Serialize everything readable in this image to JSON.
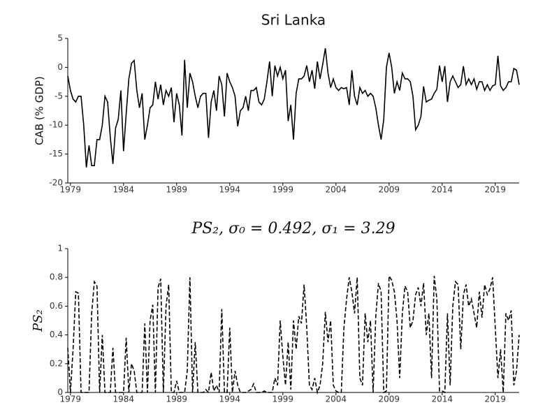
{
  "chart_data": [
    {
      "type": "line",
      "title": "Sri Lanka",
      "ylabel": "CAB (% GDP)",
      "color": "#000000",
      "linestyle": "solid",
      "x": [
        1978.75,
        1979,
        1979.25,
        1979.5,
        1979.75,
        1980,
        1980.25,
        1980.5,
        1980.75,
        1981,
        1981.25,
        1981.5,
        1981.75,
        1982,
        1982.25,
        1982.5,
        1982.75,
        1983,
        1983.25,
        1983.5,
        1983.75,
        1984,
        1984.25,
        1984.5,
        1984.75,
        1985,
        1985.25,
        1985.5,
        1985.75,
        1986,
        1986.25,
        1986.5,
        1986.75,
        1987,
        1987.25,
        1987.5,
        1987.75,
        1988,
        1988.25,
        1988.5,
        1988.75,
        1989,
        1989.25,
        1989.5,
        1989.75,
        1990,
        1990.25,
        1990.5,
        1990.75,
        1991,
        1991.25,
        1991.5,
        1991.75,
        1992,
        1992.25,
        1992.5,
        1992.75,
        1993,
        1993.25,
        1993.5,
        1993.75,
        1994,
        1994.25,
        1994.5,
        1994.75,
        1995,
        1995.25,
        1995.5,
        1995.75,
        1996,
        1996.25,
        1996.5,
        1996.75,
        1997,
        1997.25,
        1997.5,
        1997.75,
        1998,
        1998.25,
        1998.5,
        1998.75,
        1999,
        1999.25,
        1999.5,
        1999.75,
        2000,
        2000.25,
        2000.5,
        2000.75,
        2001,
        2001.25,
        2001.5,
        2001.75,
        2002,
        2002.25,
        2002.5,
        2002.75,
        2003,
        2003.25,
        2003.5,
        2003.75,
        2004,
        2004.25,
        2004.5,
        2004.75,
        2005,
        2005.25,
        2005.5,
        2005.75,
        2006,
        2006.25,
        2006.5,
        2006.75,
        2007,
        2007.25,
        2007.5,
        2007.75,
        2008,
        2008.25,
        2008.5,
        2008.75,
        2009,
        2009.25,
        2009.5,
        2009.75,
        2010,
        2010.25,
        2010.5,
        2010.75,
        2011,
        2011.25,
        2011.5,
        2011.75,
        2012,
        2012.25,
        2012.5,
        2012.75,
        2013,
        2013.25,
        2013.5,
        2013.75,
        2014,
        2014.25,
        2014.5,
        2014.75,
        2015,
        2015.25,
        2015.5,
        2015.75,
        2016,
        2016.25,
        2016.5,
        2016.75,
        2017,
        2017.25,
        2017.5,
        2017.75,
        2018,
        2018.25,
        2018.5,
        2018.75,
        2019,
        2019.25,
        2019.5,
        2019.75,
        2020,
        2020.25,
        2020.5,
        2020.75,
        2021,
        2021.25
      ],
      "values": [
        -1.5,
        -4,
        -5.5,
        -6,
        -5,
        -5,
        -10,
        -17.3,
        -13.5,
        -17,
        -17,
        -12.5,
        -12.5,
        -10,
        -5,
        -6,
        -12,
        -16.7,
        -10.5,
        -9,
        -4,
        -14.5,
        -8,
        -2,
        0.7,
        1.2,
        -4,
        -7,
        -4.5,
        -12.5,
        -10,
        -7,
        -6.5,
        -2.5,
        -5.5,
        -3,
        -6.5,
        -4,
        -5,
        -3.5,
        -9.5,
        -4.5,
        -6.5,
        -11.8,
        1.3,
        -7,
        -1,
        -2.5,
        -5,
        -7,
        -5,
        -4.5,
        -4.5,
        -12.2,
        -6,
        -4,
        -7.5,
        -1.5,
        -3,
        -8.5,
        -1,
        -2.5,
        -3.5,
        -5,
        -10.2,
        -7.5,
        -7,
        -5,
        -7.5,
        -4,
        -4,
        -3.5,
        -6,
        -6.5,
        -5.5,
        -2.5,
        1,
        -5,
        0.3,
        -1.5,
        0,
        -2,
        -0.5,
        -9.3,
        -6.5,
        -12.5,
        -4.5,
        -2,
        -2,
        -1.5,
        0.3,
        -2.5,
        -0.5,
        -3.7,
        1,
        -2,
        0.5,
        3.3,
        -1,
        -3.5,
        -2,
        -3.5,
        -4,
        -3.5,
        -3.7,
        -3.5,
        -6.5,
        -0.5,
        -5,
        -6.5,
        -3.5,
        -4.5,
        -4,
        -5,
        -4.5,
        -5,
        -7,
        -10,
        -12.5,
        -9,
        0,
        2.5,
        0,
        -4.5,
        -2.5,
        -4,
        -1,
        -2,
        -2,
        -2.5,
        -5,
        -10.8,
        -10,
        -8.5,
        -3.3,
        -6,
        -5.7,
        -5.5,
        -4.5,
        -3.8,
        0.3,
        -2.5,
        0.2,
        -6,
        -2.5,
        -1.5,
        -2.5,
        -3.5,
        -3,
        0.2,
        -3,
        -2,
        -3,
        -2,
        -3.8,
        -2.5,
        -2.5,
        -4,
        -3,
        -4,
        -3.2,
        -3,
        2,
        -3.2,
        -4,
        -3.5,
        -2.5,
        -2.5,
        -0.2,
        -0.5,
        -3
      ],
      "xlim": [
        1978.75,
        2021.25
      ],
      "xticks": [
        1979,
        1984,
        1989,
        1994,
        1999,
        2004,
        2009,
        2014,
        2019
      ],
      "ylim": [
        -20,
        5
      ],
      "yticks": [
        -20,
        -15,
        -10,
        -5,
        0,
        5
      ]
    },
    {
      "type": "line",
      "title": "PS₂, σ₀ = 0.492, σ₁ = 3.29",
      "ylabel": "PS₂",
      "color": "#000000",
      "linestyle": "dashed",
      "x": [
        1978.75,
        1979,
        1979.25,
        1979.5,
        1979.75,
        1980,
        1980.25,
        1980.5,
        1980.75,
        1981,
        1981.25,
        1981.5,
        1981.75,
        1982,
        1982.25,
        1982.5,
        1982.75,
        1983,
        1983.25,
        1983.5,
        1983.75,
        1984,
        1984.25,
        1984.5,
        1984.75,
        1985,
        1985.25,
        1985.5,
        1985.75,
        1986,
        1986.25,
        1986.5,
        1986.75,
        1987,
        1987.25,
        1987.5,
        1987.75,
        1988,
        1988.25,
        1988.5,
        1988.75,
        1989,
        1989.25,
        1989.5,
        1989.75,
        1990,
        1990.25,
        1990.5,
        1990.75,
        1991,
        1991.25,
        1991.5,
        1991.75,
        1992,
        1992.25,
        1992.5,
        1992.75,
        1993,
        1993.25,
        1993.5,
        1993.75,
        1994,
        1994.25,
        1994.5,
        1994.75,
        1995,
        1995.25,
        1995.5,
        1995.75,
        1996,
        1996.25,
        1996.5,
        1996.75,
        1997,
        1997.25,
        1997.5,
        1997.75,
        1998,
        1998.25,
        1998.5,
        1998.75,
        1999,
        1999.25,
        1999.5,
        1999.75,
        2000,
        2000.25,
        2000.5,
        2000.75,
        2001,
        2001.25,
        2001.5,
        2001.75,
        2002,
        2002.25,
        2002.5,
        2002.75,
        2003,
        2003.25,
        2003.5,
        2003.75,
        2004,
        2004.25,
        2004.5,
        2004.75,
        2005,
        2005.25,
        2005.5,
        2005.75,
        2006,
        2006.25,
        2006.5,
        2006.75,
        2007,
        2007.25,
        2007.5,
        2007.75,
        2008,
        2008.25,
        2008.5,
        2008.75,
        2009,
        2009.25,
        2009.5,
        2009.75,
        2010,
        2010.25,
        2010.5,
        2010.75,
        2011,
        2011.25,
        2011.5,
        2011.75,
        2012,
        2012.25,
        2012.5,
        2012.75,
        2013,
        2013.25,
        2013.5,
        2013.75,
        2014,
        2014.25,
        2014.5,
        2014.75,
        2015,
        2015.25,
        2015.5,
        2015.75,
        2016,
        2016.25,
        2016.5,
        2016.75,
        2017,
        2017.25,
        2017.5,
        2017.75,
        2018,
        2018.25,
        2018.5,
        2018.75,
        2019,
        2019.25,
        2019.5,
        2019.75,
        2020,
        2020.25,
        2020.5,
        2020.75,
        2021,
        2021.25
      ],
      "values": [
        0.31,
        0,
        0.3,
        0.7,
        0.69,
        0,
        0,
        0,
        0,
        0.55,
        0.77,
        0.74,
        0,
        0.4,
        0,
        0,
        0,
        0.31,
        0,
        0,
        0,
        0,
        0.38,
        0,
        0.2,
        0.15,
        0,
        0,
        0,
        0.48,
        0,
        0.5,
        0.61,
        0,
        0.73,
        0.79,
        0,
        0.6,
        0.75,
        0,
        0,
        0.08,
        0,
        0,
        0,
        0.15,
        0.8,
        0,
        0.35,
        0,
        0,
        0,
        0.02,
        0,
        0.14,
        0.01,
        0.05,
        0,
        0.58,
        0,
        0,
        0.45,
        0,
        0.15,
        0.05,
        0,
        0,
        0,
        0.01,
        0.02,
        0.06,
        0,
        0,
        0,
        0.01,
        0,
        0,
        0,
        0.1,
        0.05,
        0.5,
        0.25,
        0.05,
        0.35,
        0.02,
        0.5,
        0.3,
        0.53,
        0.48,
        0.75,
        0.45,
        0.05,
        0.02,
        0.1,
        0,
        0.05,
        0.2,
        0.56,
        0.35,
        0.5,
        0.05,
        0.01,
        0,
        0,
        0.45,
        0.65,
        0.8,
        0.7,
        0.55,
        0.8,
        0.1,
        0.05,
        0.55,
        0.35,
        0.5,
        0,
        0.53,
        0.76,
        0.7,
        0,
        0.01,
        0.81,
        0.78,
        0.7,
        0.5,
        0.1,
        0.55,
        0.74,
        0.7,
        0.45,
        0.5,
        0.68,
        0.73,
        0.6,
        0.76,
        0.4,
        0.55,
        0.1,
        0.81,
        0.65,
        0.01,
        0.01,
        0,
        0.55,
        0.05,
        0.6,
        0.77,
        0.75,
        0.3,
        0.68,
        0.75,
        0.6,
        0.65,
        0.55,
        0.45,
        0.7,
        0.52,
        0.75,
        0.68,
        0.72,
        0.8,
        0.45,
        0.1,
        0.3,
        0,
        0.55,
        0.5,
        0.57,
        0.05,
        0.15,
        0.4
      ],
      "xlim": [
        1978.75,
        2021.25
      ],
      "xticks": [
        1979,
        1984,
        1989,
        1994,
        1999,
        2004,
        2009,
        2014,
        2019
      ],
      "ylim": [
        0,
        1
      ],
      "yticks": [
        0,
        0.2,
        0.4,
        0.6,
        0.8,
        1
      ]
    }
  ]
}
